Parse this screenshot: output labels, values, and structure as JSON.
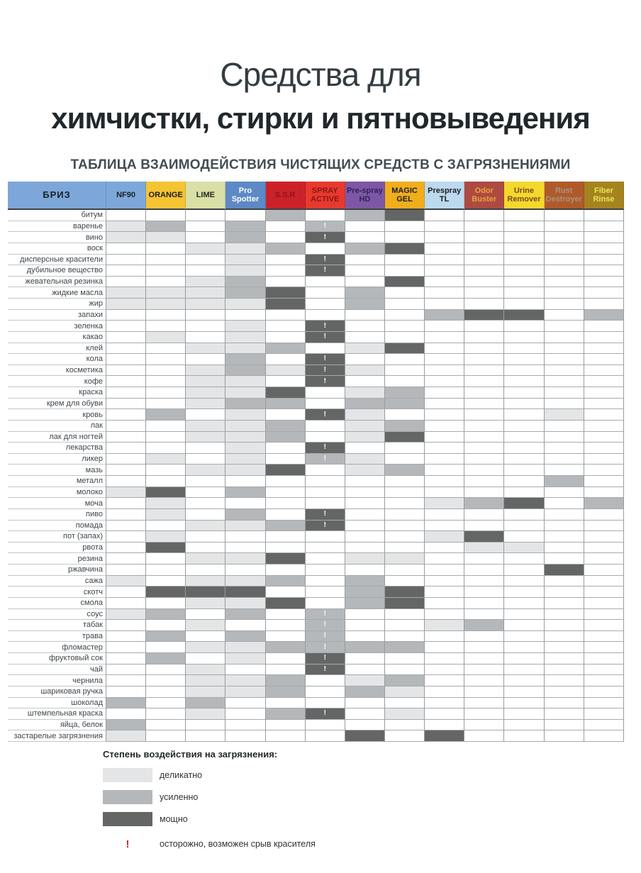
{
  "page": {
    "title_line1": "Средства для",
    "title_line2": "химчистки, стирки и пятновыведения",
    "subtitle": "ТАБЛИЦА ВЗАИМОДЕЙСТВИЯ ЧИСТЯЩИХ СРЕДСТВ С ЗАГРЯЗНЕНИЯМИ"
  },
  "colors": {
    "delicate": "#e3e5e6",
    "enhanced": "#b5b8ba",
    "powerful": "#646666",
    "warning": "#c0262c",
    "grid_line": "#989c9f"
  },
  "chart_data": {
    "type": "heatmap",
    "title": "ТАБЛИЦА ВЗАИМОДЕЙСТВИЯ ЧИСТЯЩИХ СРЕДСТВ С ЗАГРЯЗНЕНИЯМИ",
    "value_scale": {
      "1": "деликатно",
      "2": "усиленно",
      "3": "мощно",
      "!": "осторожно, возможен срыв красителя"
    },
    "brand_header": {
      "label": "БРИЗ",
      "bg": "#7da7d8",
      "fg": "#17212b"
    },
    "columns": [
      {
        "label": "NF90",
        "bg": "#7da7d8",
        "fg": "#17212b"
      },
      {
        "label": "ORANGE",
        "bg": "#f5c433",
        "fg": "#1c1c1c"
      },
      {
        "label": "LIME",
        "bg": "#d9dfa5",
        "fg": "#1e281e"
      },
      {
        "label": "Pro Spotter",
        "bg": "#5d89c6",
        "fg": "#ffffff"
      },
      {
        "label": "S.S.R",
        "bg": "#cb2229",
        "fg": "#8e1419"
      },
      {
        "label": "SPRAY ACTIVE",
        "bg": "#e63a2e",
        "fg": "#8e1419"
      },
      {
        "label": "Pre-spray HD",
        "bg": "#7d57a5",
        "fg": "#2e2257"
      },
      {
        "label": "MAGIC GEL",
        "bg": "#f0ae1d",
        "fg": "#1c1c1c"
      },
      {
        "label": "Prespray TL",
        "bg": "#bdd9ee",
        "fg": "#1c1c1c"
      },
      {
        "label": "Odor Buster",
        "bg": "#ad4a42",
        "fg": "#e9a33c"
      },
      {
        "label": "Urine Remover",
        "bg": "#f5d82e",
        "fg": "#7b4a1e"
      },
      {
        "label": "Rust Destroyer",
        "bg": "#b05a2a",
        "fg": "#a59484"
      },
      {
        "label": "Fiber Rinse",
        "bg": "#a5831f",
        "fg": "#e8e656"
      }
    ],
    "rows": [
      {
        "label": "битум",
        "cells": [
          "",
          "",
          "",
          "",
          "2",
          "",
          "2",
          "3",
          "",
          "",
          "",
          "",
          ""
        ]
      },
      {
        "label": "варенье",
        "cells": [
          "1",
          "2",
          "",
          "2",
          "",
          "2!",
          "",
          "",
          "",
          "",
          "",
          "",
          ""
        ]
      },
      {
        "label": "вино",
        "cells": [
          "1",
          "1",
          "",
          "2",
          "",
          "3!",
          "",
          "",
          "",
          "",
          "",
          "",
          ""
        ]
      },
      {
        "label": "воск",
        "cells": [
          "",
          "",
          "1",
          "1",
          "2",
          "",
          "2",
          "3",
          "",
          "",
          "",
          "",
          ""
        ]
      },
      {
        "label": "дисперсные красители",
        "cells": [
          "",
          "",
          "",
          "1",
          "",
          "3!",
          "",
          "",
          "",
          "",
          "",
          "",
          ""
        ]
      },
      {
        "label": "дубильное вещество",
        "cells": [
          "",
          "",
          "",
          "1",
          "",
          "3!",
          "",
          "",
          "",
          "",
          "",
          "",
          ""
        ]
      },
      {
        "label": "жевательная резинка",
        "cells": [
          "",
          "",
          "1",
          "2",
          "",
          "",
          "",
          "3",
          "",
          "",
          "",
          "",
          ""
        ]
      },
      {
        "label": "жидкие масла",
        "cells": [
          "1",
          "1",
          "1",
          "2",
          "3",
          "",
          "2",
          "",
          "",
          "",
          "",
          "",
          ""
        ]
      },
      {
        "label": "жир",
        "cells": [
          "1",
          "1",
          "1",
          "1",
          "3",
          "",
          "2",
          "",
          "",
          "",
          "",
          "",
          ""
        ]
      },
      {
        "label": "запахи",
        "cells": [
          "",
          "",
          "",
          "",
          "",
          "",
          "",
          "",
          "2",
          "3",
          "3",
          "",
          "2"
        ]
      },
      {
        "label": "зеленка",
        "cells": [
          "",
          "",
          "",
          "1",
          "",
          "3!",
          "",
          "",
          "",
          "",
          "",
          "",
          ""
        ]
      },
      {
        "label": "какао",
        "cells": [
          "",
          "1",
          "",
          "1",
          "",
          "3!",
          "",
          "",
          "",
          "",
          "",
          "",
          ""
        ]
      },
      {
        "label": "клей",
        "cells": [
          "",
          "",
          "1",
          "1",
          "2",
          "",
          "1",
          "3",
          "",
          "",
          "",
          "",
          ""
        ]
      },
      {
        "label": "кола",
        "cells": [
          "",
          "",
          "",
          "2",
          "",
          "3!",
          "",
          "",
          "",
          "",
          "",
          "",
          ""
        ]
      },
      {
        "label": "косметика",
        "cells": [
          "",
          "",
          "1",
          "2",
          "1",
          "3!",
          "1",
          "",
          "",
          "",
          "",
          "",
          ""
        ]
      },
      {
        "label": "кофе",
        "cells": [
          "",
          "",
          "1",
          "1",
          "",
          "3!",
          "",
          "",
          "",
          "",
          "",
          "",
          ""
        ]
      },
      {
        "label": "краска",
        "cells": [
          "",
          "",
          "1",
          "1",
          "3",
          "",
          "1",
          "2",
          "",
          "",
          "",
          "",
          ""
        ]
      },
      {
        "label": "крем для обуви",
        "cells": [
          "",
          "",
          "1",
          "2",
          "2",
          "",
          "2",
          "2",
          "",
          "",
          "",
          "",
          ""
        ]
      },
      {
        "label": "кровь",
        "cells": [
          "",
          "2",
          "",
          "1",
          "",
          "3!",
          "1",
          "",
          "",
          "",
          "",
          "1",
          ""
        ]
      },
      {
        "label": "лак",
        "cells": [
          "",
          "",
          "1",
          "1",
          "2",
          "",
          "1",
          "2",
          "",
          "",
          "",
          "",
          ""
        ]
      },
      {
        "label": "лак для ногтей",
        "cells": [
          "",
          "",
          "1",
          "1",
          "2",
          "",
          "1",
          "3",
          "",
          "",
          "",
          "",
          ""
        ]
      },
      {
        "label": "лекарства",
        "cells": [
          "",
          "",
          "",
          "1",
          "",
          "3!",
          "",
          "",
          "",
          "",
          "",
          "",
          ""
        ]
      },
      {
        "label": "ликер",
        "cells": [
          "",
          "1",
          "",
          "1",
          "",
          "2!",
          "1",
          "",
          "",
          "",
          "",
          "",
          ""
        ]
      },
      {
        "label": "мазь",
        "cells": [
          "",
          "",
          "1",
          "1",
          "3",
          "",
          "1",
          "2",
          "",
          "",
          "",
          "",
          ""
        ]
      },
      {
        "label": "металл",
        "cells": [
          "",
          "",
          "",
          "",
          "",
          "",
          "",
          "",
          "",
          "",
          "",
          "2",
          ""
        ]
      },
      {
        "label": "молоко",
        "cells": [
          "1",
          "3",
          "",
          "2",
          "",
          "",
          "",
          "",
          "",
          "",
          "",
          "",
          ""
        ]
      },
      {
        "label": "моча",
        "cells": [
          "",
          "1",
          "",
          "",
          "",
          "",
          "",
          "",
          "1",
          "2",
          "3",
          "",
          "2"
        ]
      },
      {
        "label": "пиво",
        "cells": [
          "",
          "1",
          "",
          "2",
          "",
          "3!",
          "",
          "",
          "",
          "",
          "",
          "",
          ""
        ]
      },
      {
        "label": "помада",
        "cells": [
          "",
          "",
          "1",
          "1",
          "2",
          "3!",
          "",
          "",
          "",
          "",
          "",
          "",
          ""
        ]
      },
      {
        "label": "пот (запах)",
        "cells": [
          "",
          "1",
          "",
          "",
          "",
          "",
          "",
          "",
          "1",
          "3",
          "",
          "",
          ""
        ]
      },
      {
        "label": "рвота",
        "cells": [
          "",
          "3",
          "",
          "",
          "",
          "",
          "",
          "",
          "",
          "1",
          "1",
          "",
          ""
        ]
      },
      {
        "label": "резина",
        "cells": [
          "",
          "",
          "1",
          "1",
          "3",
          "",
          "1",
          "1",
          "",
          "",
          "",
          "",
          ""
        ]
      },
      {
        "label": "ржавчина",
        "cells": [
          "",
          "",
          "",
          "",
          "",
          "",
          "",
          "",
          "",
          "",
          "",
          "3",
          ""
        ]
      },
      {
        "label": "сажа",
        "cells": [
          "1",
          "",
          "1",
          "1",
          "2",
          "",
          "2",
          "",
          "",
          "",
          "",
          "",
          ""
        ]
      },
      {
        "label": "скотч",
        "cells": [
          "",
          "3",
          "3",
          "3",
          "",
          "",
          "2",
          "3",
          "",
          "",
          "",
          "",
          ""
        ]
      },
      {
        "label": "смола",
        "cells": [
          "",
          "",
          "1",
          "1",
          "3",
          "",
          "2",
          "3",
          "",
          "",
          "",
          "",
          ""
        ]
      },
      {
        "label": "соус",
        "cells": [
          "1",
          "2",
          "",
          "2",
          "",
          "2!",
          "",
          "",
          "",
          "",
          "",
          "",
          ""
        ]
      },
      {
        "label": "табак",
        "cells": [
          "",
          "",
          "1",
          "",
          "",
          "2!",
          "",
          "",
          "1",
          "2",
          "",
          "",
          ""
        ]
      },
      {
        "label": "трава",
        "cells": [
          "",
          "2",
          "",
          "2",
          "",
          "2!",
          "",
          "",
          "",
          "",
          "",
          "",
          ""
        ]
      },
      {
        "label": "фломастер",
        "cells": [
          "",
          "",
          "1",
          "1",
          "2",
          "2!",
          "2",
          "2",
          "",
          "",
          "",
          "",
          ""
        ]
      },
      {
        "label": "фруктовый сок",
        "cells": [
          "",
          "2",
          "",
          "1",
          "",
          "3!",
          "",
          "",
          "",
          "",
          "",
          "",
          ""
        ]
      },
      {
        "label": "чай",
        "cells": [
          "",
          "",
          "1",
          "",
          "",
          "3!",
          "",
          "",
          "",
          "",
          "",
          "",
          ""
        ]
      },
      {
        "label": "чернила",
        "cells": [
          "",
          "",
          "1",
          "1",
          "2",
          "",
          "1",
          "2",
          "",
          "",
          "",
          "",
          ""
        ]
      },
      {
        "label": "шариковая ручка",
        "cells": [
          "",
          "",
          "1",
          "1",
          "2",
          "",
          "2",
          "1",
          "",
          "",
          "",
          "",
          ""
        ]
      },
      {
        "label": "шоколад",
        "cells": [
          "2",
          "",
          "2",
          "",
          "",
          "",
          "",
          "",
          "",
          "",
          "",
          "",
          ""
        ]
      },
      {
        "label": "штемпельная краска",
        "cells": [
          "",
          "",
          "1",
          "",
          "2",
          "3!",
          "",
          "1",
          "",
          "",
          "",
          "",
          ""
        ]
      },
      {
        "label": "яйца, белок",
        "cells": [
          "2",
          "",
          "",
          "",
          "",
          "",
          "",
          "",
          "",
          "",
          "",
          "",
          ""
        ]
      },
      {
        "label": "застарелые загрязнения",
        "cells": [
          "1",
          "",
          "",
          "",
          "",
          "",
          "3",
          "",
          "3",
          "",
          "",
          "",
          ""
        ]
      }
    ]
  },
  "legend": {
    "title": "Степень воздействия на загрязнения:",
    "items": [
      {
        "level": "1",
        "label": "деликатно"
      },
      {
        "level": "2",
        "label": "усиленно"
      },
      {
        "level": "3",
        "label": "мощно"
      }
    ],
    "warning_symbol": "!",
    "warning_label": "осторожно, возможен срыв красителя"
  }
}
